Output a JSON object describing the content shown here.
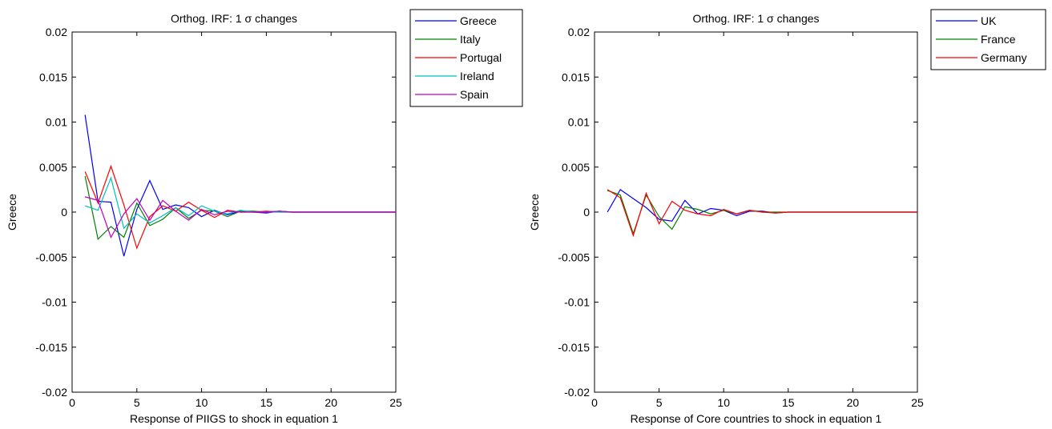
{
  "chart_data": [
    {
      "type": "line",
      "title": "Orthog. IRF: 1 σ changes",
      "xlabel": "Response of PIIGS to shock in equation 1",
      "ylabel": "Greece",
      "xlim": [
        0,
        25
      ],
      "ylim": [
        -0.02,
        0.02
      ],
      "xticks": [
        "0",
        "5",
        "10",
        "15",
        "20",
        "25"
      ],
      "yticks": [
        "0.02",
        "0.015",
        "0.01",
        "0.005",
        "0",
        "-0.005",
        "-0.01",
        "-0.015",
        "-0.02"
      ],
      "grid": false,
      "legend": "top-right outside",
      "x": [
        1,
        2,
        3,
        4,
        5,
        6,
        7,
        8,
        9,
        10,
        11,
        12,
        13,
        14,
        15,
        16,
        17,
        18,
        19,
        20,
        21,
        22,
        23,
        24,
        25
      ],
      "series": [
        {
          "name": "Greece",
          "color": "#0000ff",
          "values": [
            0.0108,
            0.0012,
            0.0011,
            -0.0049,
            0.0003,
            0.0035,
            0.0003,
            0.0008,
            0.0005,
            -0.0005,
            0.0002,
            -0.0003,
            0.0001,
            0.0,
            -0.0001,
            0.0001,
            0.0,
            0,
            0,
            0,
            0,
            0,
            0,
            0,
            0
          ]
        },
        {
          "name": "Italy",
          "color": "#008000",
          "values": [
            0.004,
            -0.003,
            -0.0016,
            -0.0028,
            0.001,
            -0.0015,
            -0.0008,
            0.0005,
            -0.0007,
            0.0002,
            0.0001,
            -0.0005,
            0.0001,
            0.0001,
            0.0,
            0.0001,
            0.0,
            0,
            0,
            0,
            0,
            0,
            0,
            0,
            0
          ]
        },
        {
          "name": "Portugal",
          "color": "#ff0000",
          "values": [
            0.0045,
            0.001,
            0.0051,
            0.0008,
            -0.004,
            -0.0005,
            0.0007,
            0.0001,
            0.0011,
            0.0002,
            -0.0006,
            0.0002,
            0.0,
            0.0,
            0.0001,
            0.0,
            0.0,
            0,
            0,
            0,
            0,
            0,
            0,
            0,
            0
          ]
        },
        {
          "name": "Ireland",
          "color": "#00bfbf",
          "values": [
            0.0007,
            0.0002,
            0.0038,
            -0.0018,
            -0.0002,
            -0.0012,
            -0.0004,
            0.0005,
            -0.0004,
            0.0007,
            0.0001,
            -0.0002,
            0.0002,
            0.0,
            0.0,
            0.0,
            0.0,
            0,
            0,
            0,
            0,
            0,
            0,
            0,
            0
          ]
        },
        {
          "name": "Spain",
          "color": "#bf00bf",
          "values": [
            0.0017,
            0.0013,
            -0.0028,
            -0.0002,
            0.0015,
            -0.0009,
            0.0013,
            0.0001,
            -0.0009,
            0.0003,
            -0.0003,
            0.0001,
            0.0,
            0.0,
            0.0,
            0.0001,
            0.0,
            0,
            0,
            0,
            0,
            0,
            0,
            0,
            0
          ]
        }
      ]
    },
    {
      "type": "line",
      "title": "Orthog. IRF: 1 σ changes",
      "xlabel": "Response of Core countries to shock in equation 1",
      "ylabel": "Greece",
      "xlim": [
        0,
        25
      ],
      "ylim": [
        -0.02,
        0.02
      ],
      "xticks": [
        "0",
        "5",
        "10",
        "15",
        "20",
        "25"
      ],
      "yticks": [
        "0.02",
        "0.015",
        "0.01",
        "0.005",
        "0",
        "-0.005",
        "-0.01",
        "-0.015",
        "-0.02"
      ],
      "grid": false,
      "legend": "top-right outside",
      "x": [
        1,
        2,
        3,
        4,
        5,
        6,
        7,
        8,
        9,
        10,
        11,
        12,
        13,
        14,
        15,
        16,
        17,
        18,
        19,
        20,
        21,
        22,
        23,
        24,
        25
      ],
      "series": [
        {
          "name": "UK",
          "color": "#0000ff",
          "values": [
            0.0,
            0.0025,
            0.0015,
            0.0005,
            -0.0008,
            -0.001,
            0.0013,
            -0.0002,
            0.0004,
            0.0002,
            -0.0004,
            0.0001,
            0.0001,
            -0.0001,
            0.0,
            0.0,
            0.0,
            0,
            0,
            0,
            0,
            0,
            0,
            0,
            0
          ]
        },
        {
          "name": "France",
          "color": "#008000",
          "values": [
            0.0024,
            0.0019,
            -0.0024,
            0.0019,
            -0.0005,
            -0.0019,
            0.0006,
            0.0003,
            -0.0002,
            0.0002,
            -0.0002,
            0.0002,
            0.0,
            0.0,
            0.0,
            0.0,
            0.0,
            0,
            0,
            0,
            0,
            0,
            0,
            0,
            0
          ]
        },
        {
          "name": "Germany",
          "color": "#ff0000",
          "values": [
            0.0025,
            0.0016,
            -0.0026,
            0.0021,
            -0.0013,
            0.0012,
            0.0002,
            -0.0002,
            -0.0004,
            0.0003,
            -0.0002,
            0.0002,
            0.0,
            -0.0001,
            0.0,
            0.0,
            0.0,
            0,
            0,
            0,
            0,
            0,
            0,
            0,
            0
          ]
        }
      ]
    }
  ]
}
